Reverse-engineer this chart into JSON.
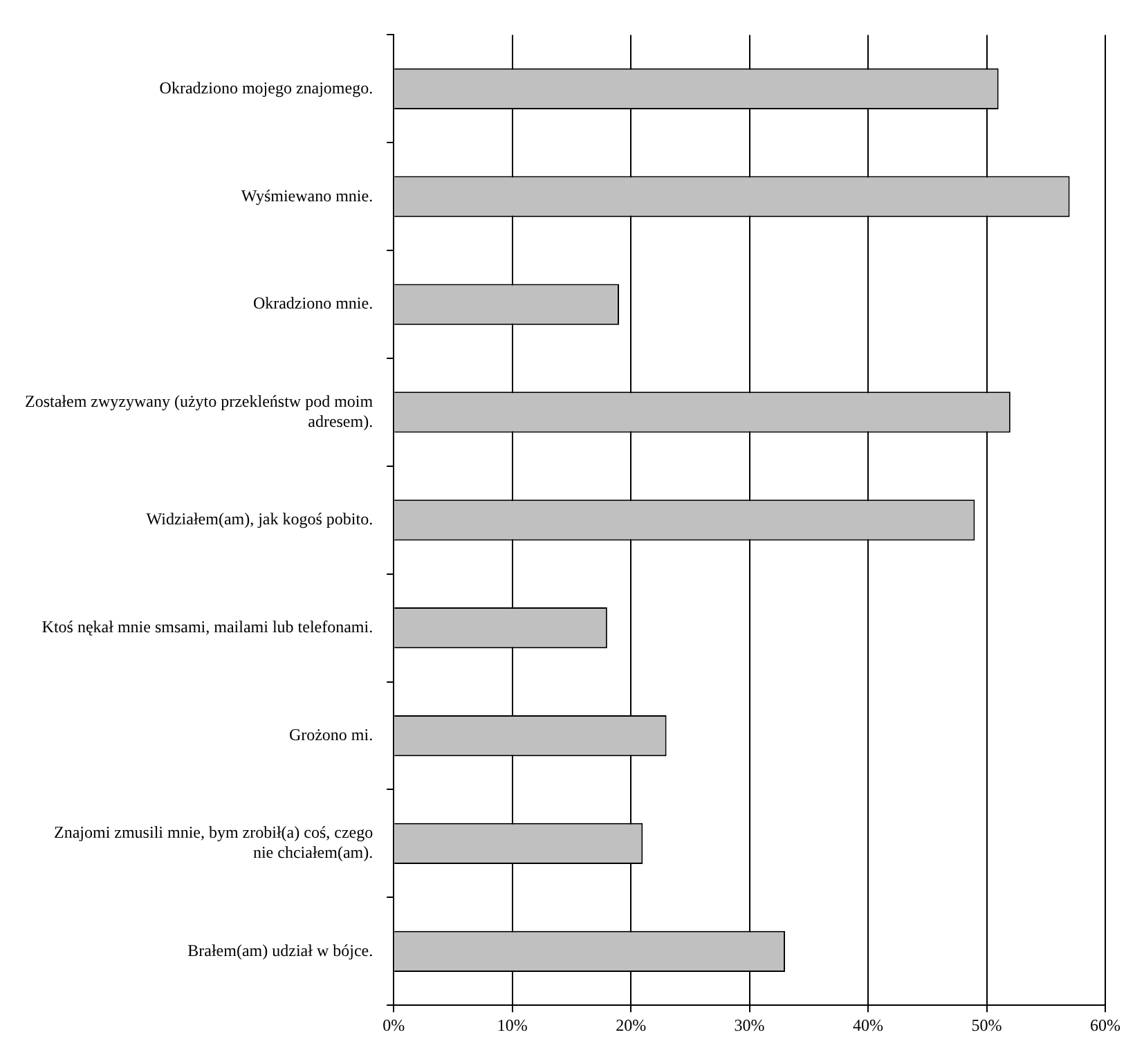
{
  "chart_data": {
    "type": "bar",
    "orientation": "horizontal",
    "categories": [
      "Okradziono mojego znajomego.",
      "Wyśmiewano mnie.",
      "Okradziono mnie.",
      "Zostałem zwyzywany (użyto przekleństw pod moim adresem).",
      "Widziałem(am), jak kogoś pobito.",
      "Ktoś nękał mnie smsami, mailami lub telefonami.",
      "Grożono mi.",
      "Znajomi zmusili mnie, bym zrobił(a) coś, czego nie chciałem(am).",
      "Brałem(am) udział w bójce."
    ],
    "values": [
      51,
      57,
      19,
      52,
      49,
      18,
      23,
      21,
      33
    ],
    "color": "#c0c0c0",
    "xlim": [
      0,
      60
    ],
    "xticks": [
      {
        "value": 0,
        "label": "0%"
      },
      {
        "value": 10,
        "label": "10%"
      },
      {
        "value": 20,
        "label": "20%"
      },
      {
        "value": 30,
        "label": "30%"
      },
      {
        "value": 40,
        "label": "40%"
      },
      {
        "value": 50,
        "label": "50%"
      },
      {
        "value": 60,
        "label": "60%"
      }
    ],
    "grid": "x",
    "legend": false
  }
}
